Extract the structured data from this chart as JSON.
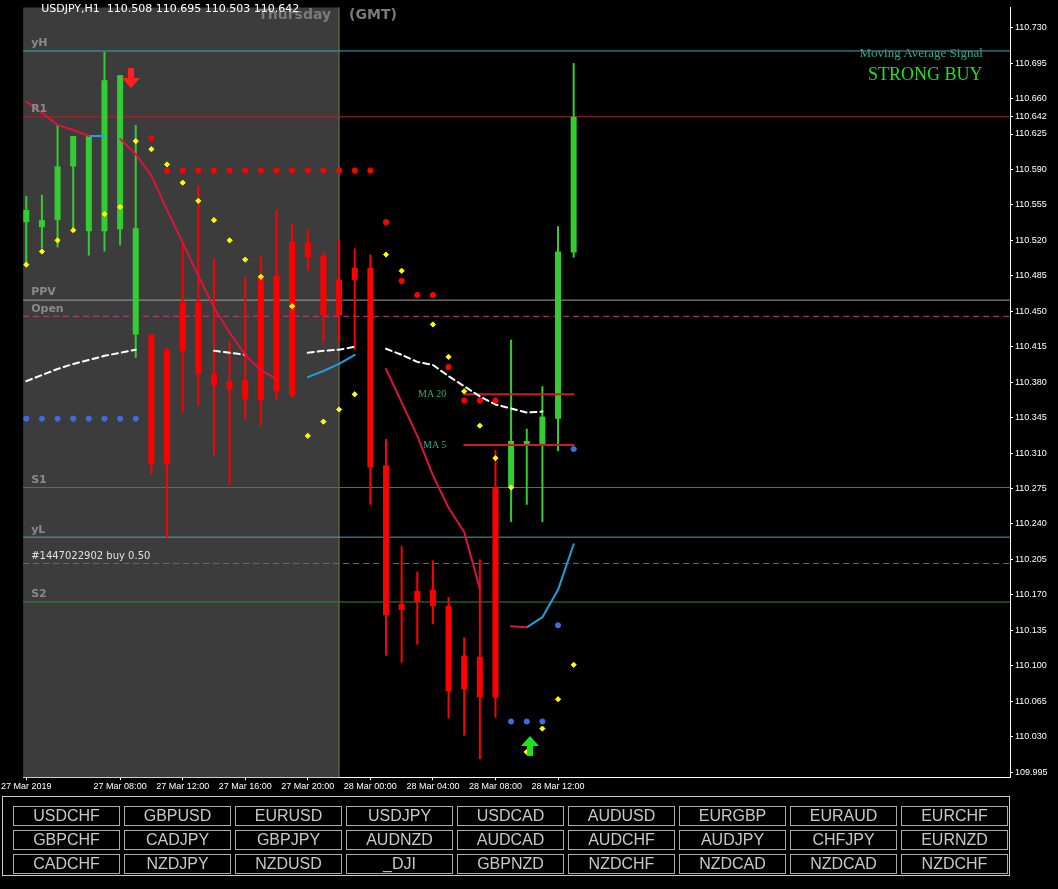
{
  "chart_data": [
    {
      "type": "candlestick",
      "title": "USDJPY,H1  110.508 110.695 110.503 110.642",
      "x": [
        "2019-03-27T02:00",
        "2019-03-27T03:00",
        "2019-03-27T04:00",
        "2019-03-27T05:00",
        "2019-03-27T06:00",
        "2019-03-27T07:00",
        "2019-03-27T08:00",
        "2019-03-27T09:00",
        "2019-03-27T10:00",
        "2019-03-27T11:00",
        "2019-03-27T12:00",
        "2019-03-27T13:00",
        "2019-03-27T14:00",
        "2019-03-27T15:00",
        "2019-03-27T16:00",
        "2019-03-27T17:00",
        "2019-03-27T18:00",
        "2019-03-27T19:00",
        "2019-03-27T20:00",
        "2019-03-27T21:00",
        "2019-03-27T22:00",
        "2019-03-27T23:00",
        "2019-03-28T00:00",
        "2019-03-28T01:00",
        "2019-03-28T02:00",
        "2019-03-28T03:00",
        "2019-03-28T04:00",
        "2019-03-28T05:00",
        "2019-03-28T06:00",
        "2019-03-28T07:00",
        "2019-03-28T08:00",
        "2019-03-28T09:00",
        "2019-03-28T10:00",
        "2019-03-28T11:00",
        "2019-03-28T12:00",
        "2019-03-28T13:00"
      ],
      "ohlc": [
        [
          110.538,
          110.564,
          110.495,
          110.55
        ],
        [
          110.533,
          110.565,
          110.512,
          110.54
        ],
        [
          110.54,
          110.634,
          110.513,
          110.593
        ],
        [
          110.593,
          110.623,
          110.53,
          110.623
        ],
        [
          110.529,
          110.623,
          110.505,
          110.623
        ],
        [
          110.529,
          110.706,
          110.509,
          110.678
        ],
        [
          110.531,
          110.683,
          110.515,
          110.683
        ],
        [
          110.427,
          110.634,
          110.404,
          110.532
        ],
        [
          110.427,
          110.427,
          110.289,
          110.299
        ],
        [
          110.412,
          110.414,
          110.226,
          110.299
        ],
        [
          110.459,
          110.518,
          110.35,
          110.411
        ],
        [
          110.459,
          110.574,
          110.357,
          110.388
        ],
        [
          110.388,
          110.502,
          110.308,
          110.377
        ],
        [
          110.381,
          110.421,
          110.279,
          110.373
        ],
        [
          110.382,
          110.484,
          110.343,
          110.363
        ],
        [
          110.484,
          110.504,
          110.337,
          110.362
        ],
        [
          110.485,
          110.55,
          110.363,
          110.371
        ],
        [
          110.519,
          110.537,
          110.365,
          110.367
        ],
        [
          110.518,
          110.531,
          110.49,
          110.503
        ],
        [
          110.505,
          110.508,
          110.419,
          110.446
        ],
        [
          110.481,
          110.521,
          110.419,
          110.446
        ],
        [
          110.493,
          110.512,
          110.412,
          110.481
        ],
        [
          110.493,
          110.506,
          110.259,
          110.296
        ],
        [
          110.298,
          110.324,
          110.11,
          110.15
        ],
        [
          110.161,
          110.218,
          110.103,
          110.155
        ],
        [
          110.174,
          110.193,
          110.121,
          110.163
        ],
        [
          110.175,
          110.204,
          110.141,
          110.159
        ],
        [
          110.159,
          110.168,
          110.048,
          110.075
        ],
        [
          110.11,
          110.128,
          110.031,
          110.077
        ],
        [
          110.109,
          110.205,
          110.008,
          110.069
        ],
        [
          110.276,
          110.313,
          110.049,
          110.069
        ],
        [
          110.276,
          110.422,
          110.242,
          110.322
        ],
        [
          110.319,
          110.334,
          110.259,
          110.322
        ],
        [
          110.319,
          110.376,
          110.242,
          110.346
        ],
        [
          110.344,
          110.534,
          110.312,
          110.509
        ],
        [
          110.508,
          110.695,
          110.503,
          110.642
        ]
      ],
      "colors": [
        "#32cd32",
        "#32cd32",
        "#32cd32",
        "#32cd32",
        "#32cd32",
        "#32cd32",
        "#32cd32",
        "#32cd32",
        "#ff0000",
        "#ff0000",
        "#ff0000",
        "#ff0000",
        "#ff0000",
        "#ff0000",
        "#ff0000",
        "#ff0000",
        "#ff0000",
        "#ff0000",
        "#ff0000",
        "#ff0000",
        "#ff0000",
        "#ff0000",
        "#ff0000",
        "#ff0000",
        "#ff0000",
        "#ff0000",
        "#ff0000",
        "#ff0000",
        "#ff0000",
        "#ff0000",
        "#ff0000",
        "#32cd32",
        "#32cd32",
        "#32cd32",
        "#32cd32",
        "#32cd32"
      ],
      "series": [
        {
          "type": "line",
          "color": "#dc143c",
          "values": [
            110.657,
            110.646,
            110.634,
            110.629,
            110.623,
            null,
            110.62,
            110.605,
            110.584,
            110.55,
            110.518,
            110.485,
            110.454,
            110.429,
            110.407,
            110.392,
            110.383,
            null,
            null,
            null,
            null,
            null,
            null,
            110.393,
            110.36,
            110.327,
            110.288,
            110.256,
            110.232,
            110.176,
            null,
            110.139,
            110.138,
            null,
            null,
            null
          ]
        },
        {
          "type": "line",
          "color": "#1e9fe0",
          "values": [
            null,
            null,
            null,
            null,
            110.623,
            110.623,
            null,
            null,
            null,
            null,
            null,
            null,
            null,
            null,
            null,
            null,
            null,
            null,
            110.385,
            110.391,
            110.398,
            110.407,
            null,
            null,
            null,
            null,
            null,
            null,
            null,
            null,
            null,
            null,
            110.138,
            110.148,
            110.175,
            110.22
          ]
        },
        {
          "type": "line",
          "color": "#ffffff",
          "line_style": "dashed",
          "values": [
            110.381,
            110.387,
            110.393,
            110.398,
            110.402,
            110.406,
            110.409,
            110.412,
            null,
            null,
            null,
            null,
            110.411,
            110.409,
            110.407,
            null,
            null,
            null,
            110.409,
            110.411,
            110.412,
            110.415,
            null,
            110.413,
            110.407,
            110.4,
            110.397,
            110.386,
            110.376,
            110.366,
            110.358,
            110.354,
            110.35,
            110.351,
            null,
            null
          ]
        },
        {
          "type": "scatter",
          "color": "#ffff00",
          "marker": "diamond",
          "values": [
            110.496,
            110.509,
            110.52,
            110.53,
            null,
            110.546,
            110.553,
            110.618,
            110.61,
            110.595,
            110.577,
            110.559,
            110.54,
            110.52,
            110.501,
            110.484,
            null,
            110.455,
            110.327,
            110.341,
            110.353,
            110.368,
            null,
            110.506,
            110.49,
            null,
            110.437,
            110.405,
            110.371,
            110.337,
            110.305,
            110.276,
            110.015,
            110.038,
            110.067,
            110.101
          ]
        },
        {
          "type": "scatter",
          "color": "#ff0000",
          "marker": "circle",
          "values": [
            null,
            null,
            null,
            null,
            null,
            null,
            null,
            null,
            110.621,
            110.589,
            110.589,
            110.589,
            110.589,
            110.589,
            110.589,
            110.589,
            110.589,
            110.589,
            110.589,
            110.589,
            110.589,
            110.589,
            110.589,
            110.538,
            110.48,
            110.466,
            110.466,
            110.395,
            110.362,
            110.362,
            110.362,
            null,
            null,
            null,
            null,
            null
          ]
        },
        {
          "type": "scatter",
          "color": "#4169e1",
          "marker": "circle",
          "values": [
            110.344,
            110.344,
            110.344,
            110.344,
            110.344,
            110.344,
            110.344,
            110.344,
            null,
            null,
            null,
            null,
            null,
            null,
            null,
            null,
            null,
            null,
            null,
            null,
            null,
            null,
            null,
            null,
            null,
            null,
            null,
            null,
            null,
            null,
            null,
            110.045,
            110.045,
            110.045,
            110.14,
            110.314
          ]
        },
        {
          "type": "line",
          "name": "MA 20",
          "color": "#c81e1e",
          "x": [
            "2019-03-28T06:00",
            "2019-03-28T13:00"
          ],
          "values": [
            110.368,
            110.368
          ]
        },
        {
          "type": "line",
          "name": "MA 5",
          "color": "#c81e1e",
          "x": [
            "2019-03-28T06:00",
            "2019-03-28T13:00"
          ],
          "values": [
            110.318,
            110.318
          ]
        }
      ],
      "bands": [
        {
          "axis": "x",
          "from": "2019-03-27T01:48",
          "to": "2019-03-27T22:00",
          "color": "#3c3c3c"
        }
      ],
      "ref_lines": [
        {
          "axis": "x",
          "value": "2019-03-27T22:00",
          "label": "Thursday",
          "color": "#7a7a50"
        },
        {
          "axis": "y",
          "value": 110.707,
          "label": "yH",
          "color": "#3fa9b5"
        },
        {
          "axis": "y",
          "value": 110.642,
          "label": "R1",
          "color": "#b22222"
        },
        {
          "axis": "y",
          "value": 110.461,
          "label": "PPV",
          "color": "#a0a0a0"
        },
        {
          "axis": "y",
          "value": 110.445,
          "label": "Open",
          "color": "#c04080",
          "line_style": "dashed"
        },
        {
          "axis": "y",
          "value": 110.276,
          "label": "S1",
          "color": "#2e8b2e"
        },
        {
          "axis": "y",
          "value": 110.227,
          "label": "yL",
          "color": "#3fa9b5"
        },
        {
          "axis": "y",
          "value": 110.201,
          "label": "#1447022902 buy 0.50",
          "color": "#20a020",
          "line_style": "dashed"
        },
        {
          "axis": "y",
          "value": 110.163,
          "label": "S2",
          "color": "#2e8b2e"
        }
      ],
      "annotations": [
        "(GMT)",
        "Moving Average Signal",
        "STRONG BUY"
      ],
      "xlim": [
        "2019-03-27T01:48",
        "2019-03-29T16:54"
      ],
      "xticks": [
        {
          "value": "2019-03-27T02:00",
          "label": "27 Mar 2019"
        },
        {
          "value": "2019-03-27T08:00",
          "label": "27 Mar 08:00"
        },
        {
          "value": "2019-03-27T12:00",
          "label": "27 Mar 12:00"
        },
        {
          "value": "2019-03-27T16:00",
          "label": "27 Mar 16:00"
        },
        {
          "value": "2019-03-27T20:00",
          "label": "27 Mar 20:00"
        },
        {
          "value": "2019-03-28T00:00",
          "label": "28 Mar 00:00"
        },
        {
          "value": "2019-03-28T04:00",
          "label": "28 Mar 04:00"
        },
        {
          "value": "2019-03-28T08:00",
          "label": "28 Mar 08:00"
        },
        {
          "value": "2019-03-28T12:00",
          "label": "28 Mar 12:00"
        }
      ],
      "ylim": [
        109.99,
        110.75
      ],
      "yticks": [
        {
          "value": 109.995,
          "label": "109.995"
        },
        {
          "value": 110.03,
          "label": "110.030"
        },
        {
          "value": 110.065,
          "label": "110.065"
        },
        {
          "value": 110.1,
          "label": "110.100"
        },
        {
          "value": 110.135,
          "label": "110.135"
        },
        {
          "value": 110.17,
          "label": "110.170"
        },
        {
          "value": 110.205,
          "label": "110.205"
        },
        {
          "value": 110.24,
          "label": "110.240"
        },
        {
          "value": 110.275,
          "label": "110.275"
        },
        {
          "value": 110.31,
          "label": "110.310"
        },
        {
          "value": 110.345,
          "label": "110.345"
        },
        {
          "value": 110.38,
          "label": "110.380"
        },
        {
          "value": 110.415,
          "label": "110.415"
        },
        {
          "value": 110.45,
          "label": "110.450"
        },
        {
          "value": 110.485,
          "label": "110.485"
        },
        {
          "value": 110.52,
          "label": "110.520"
        },
        {
          "value": 110.555,
          "label": "110.555"
        },
        {
          "value": 110.59,
          "label": "110.590"
        },
        {
          "value": 110.625,
          "label": "110.625"
        },
        {
          "value": 110.642,
          "label": "110.642"
        },
        {
          "value": 110.66,
          "label": "110.660"
        },
        {
          "value": 110.695,
          "label": "110.695"
        },
        {
          "value": 110.73,
          "label": "110.730"
        }
      ]
    },
    {
      "type": "other",
      "annotations": [
        "USDCHF",
        "GBPUSD",
        "EURUSD",
        "USDJPY",
        "USDCAD",
        "AUDUSD",
        "EURGBP",
        "EURAUD",
        "EURCHF",
        "GBPCHF",
        "CADJPY",
        "GBPJPY",
        "AUDNZD",
        "AUDCAD",
        "AUDCHF",
        "AUDJPY",
        "CHFJPY",
        "EURNZD",
        "CADCHF",
        "NZDJPY",
        "NZDUSD",
        "_DJI",
        "GBPNZD",
        "NZDCHF",
        "NZDCAD",
        "NZDCAD",
        "NZDCHF"
      ]
    }
  ]
}
